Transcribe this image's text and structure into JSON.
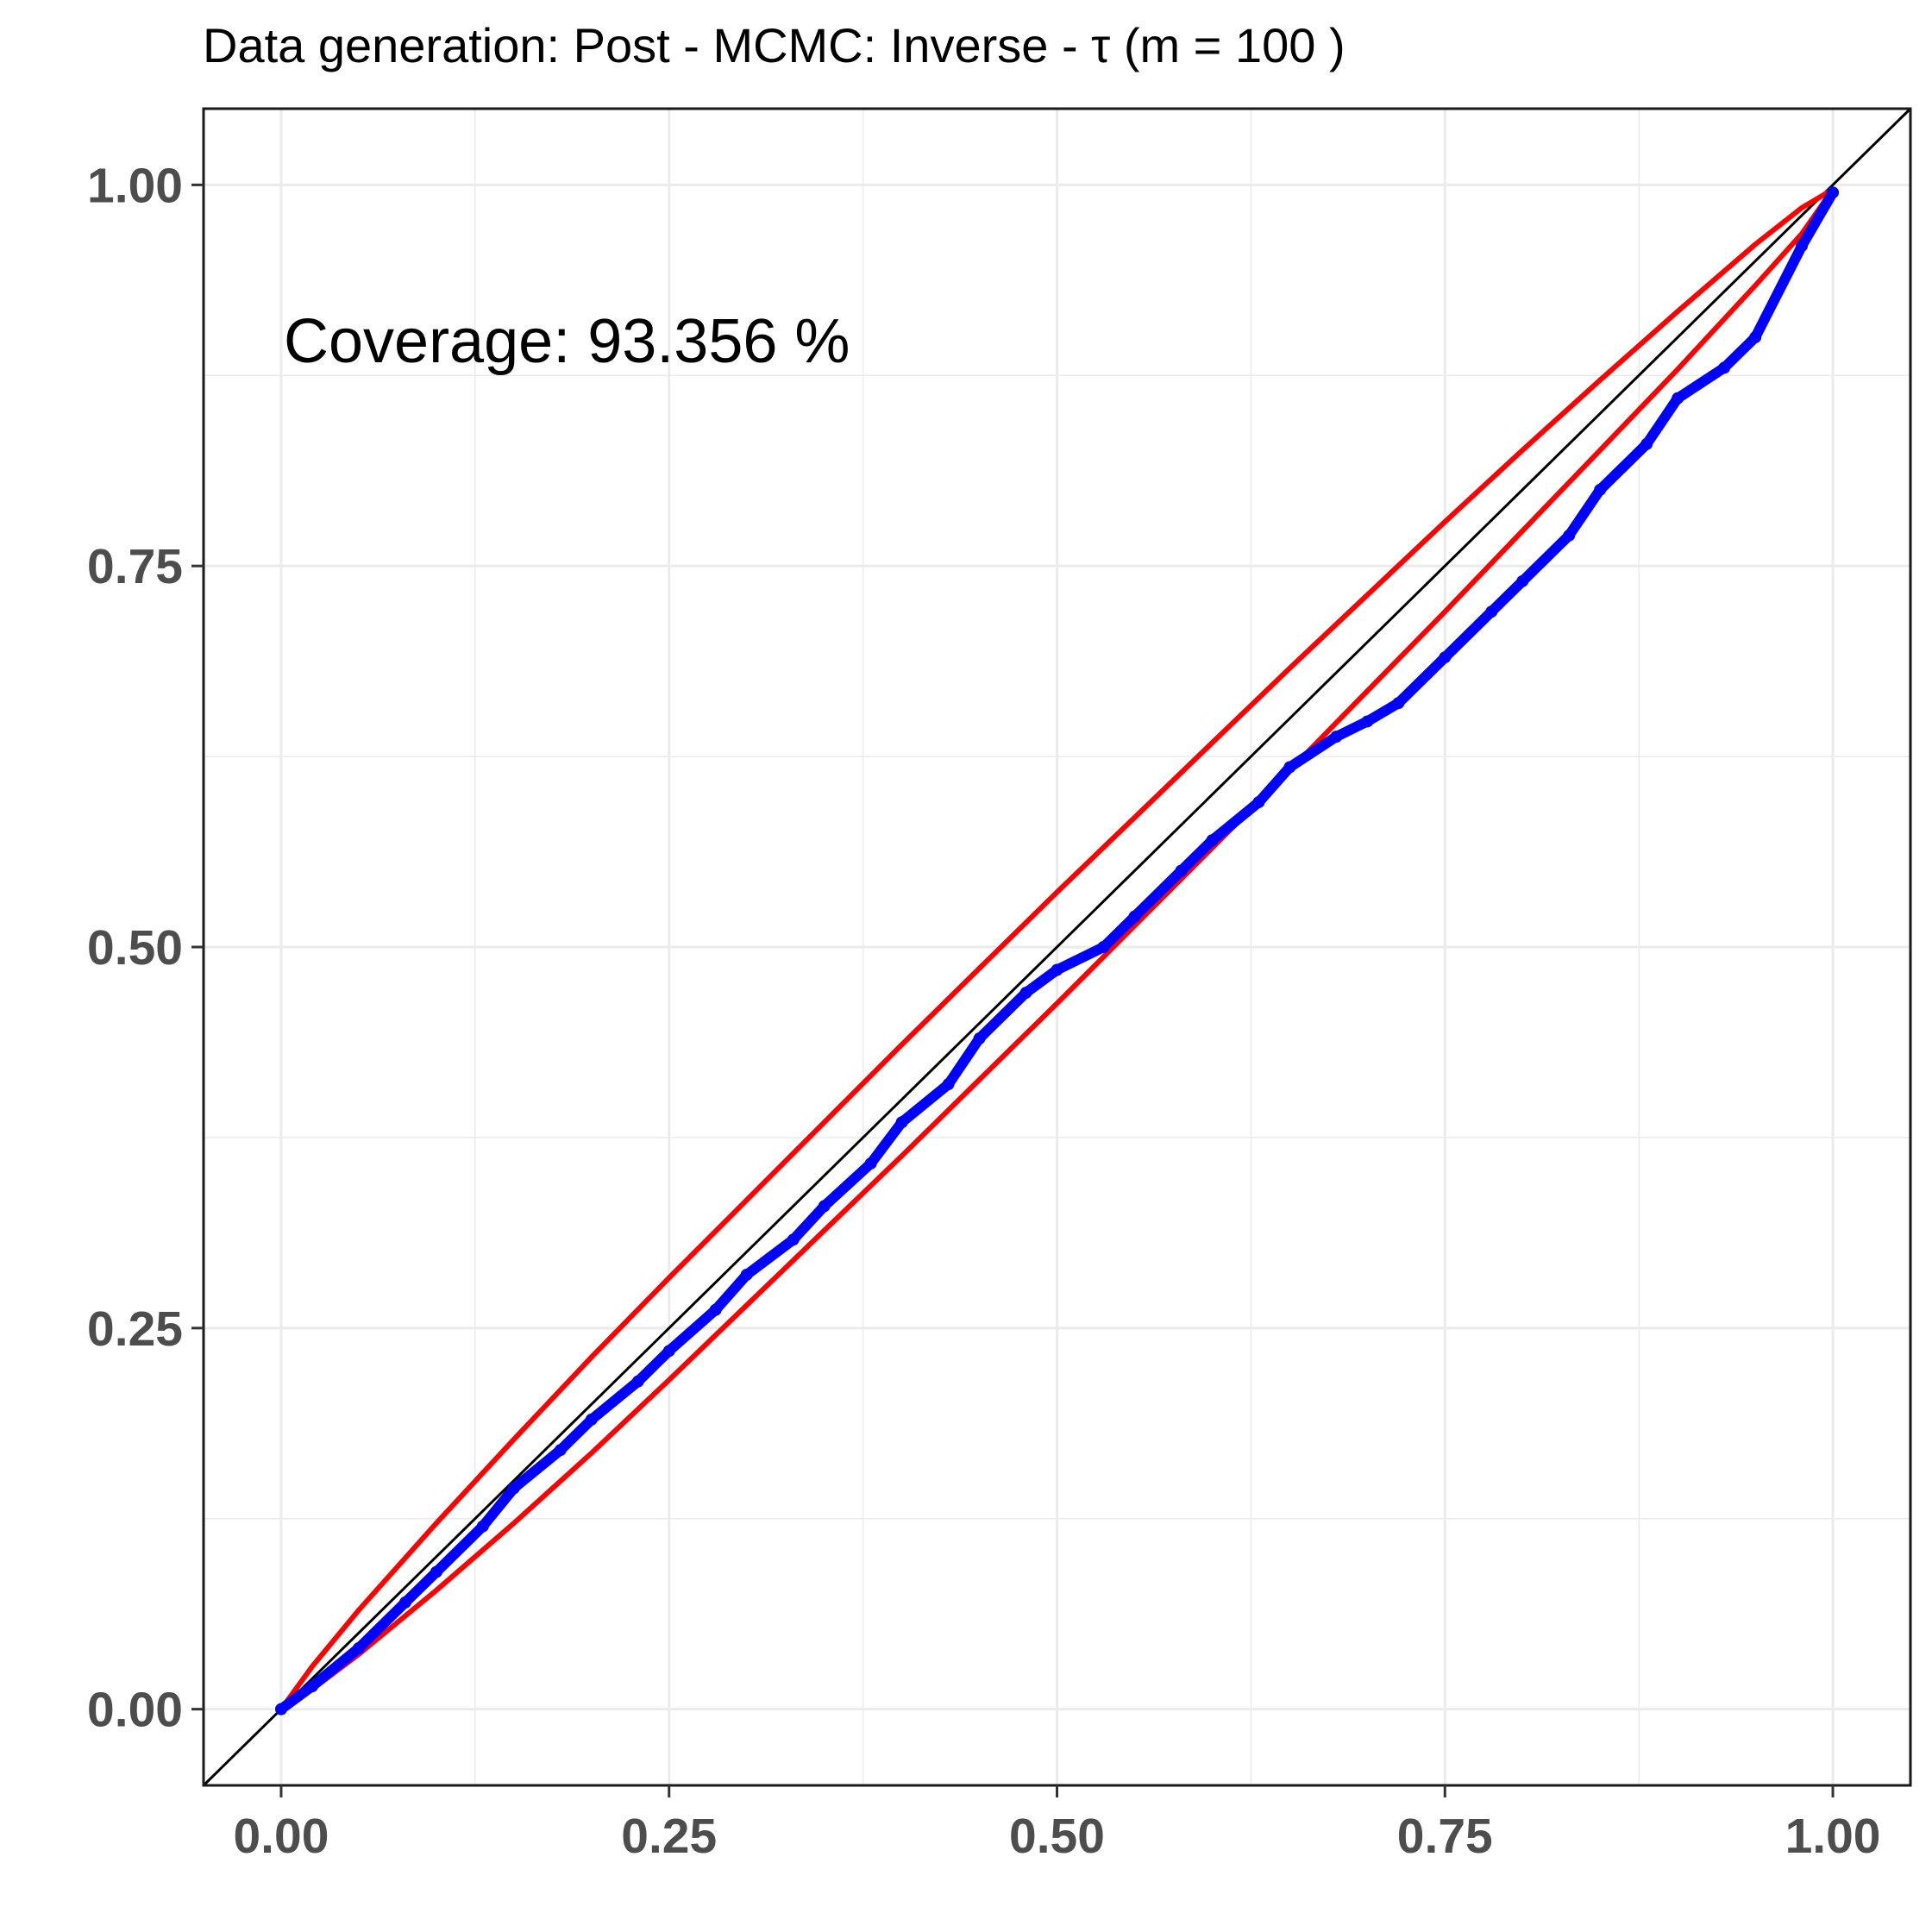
{
  "chart_data": {
    "type": "line",
    "title": "Data generation:  Post - MCMC:  Inverse  -  τ  (m =  100 )",
    "xlabel": "",
    "ylabel": "",
    "xlim": [
      -0.05,
      1.05
    ],
    "ylim": [
      -0.05,
      1.05
    ],
    "x_ticks": [
      0,
      0.25,
      0.5,
      0.75,
      1
    ],
    "y_ticks": [
      0,
      0.25,
      0.5,
      0.75,
      1
    ],
    "tick_labels": [
      "0.00",
      "0.25",
      "0.50",
      "0.75",
      "1.00"
    ],
    "grid": true,
    "annotation": "Coverage:  93.356 %",
    "colors": {
      "points": "#0000ff",
      "band": "#ff0000",
      "reference": "#000000",
      "grid": "#ebebeb"
    },
    "reference_line": {
      "slope": 1,
      "intercept": 0
    },
    "series": [
      {
        "type": "scatter",
        "x": [
          0.0,
          0.02,
          0.05,
          0.08,
          0.1,
          0.13,
          0.15,
          0.18,
          0.2,
          0.23,
          0.25,
          0.28,
          0.3,
          0.33,
          0.35,
          0.38,
          0.4,
          0.43,
          0.45,
          0.48,
          0.5,
          0.53,
          0.55,
          0.58,
          0.6,
          0.63,
          0.65,
          0.68,
          0.7,
          0.72,
          0.75,
          0.78,
          0.8,
          0.83,
          0.85,
          0.88,
          0.9,
          0.93,
          0.95,
          0.98,
          1.0
        ],
        "y": [
          0.0,
          0.015,
          0.04,
          0.07,
          0.09,
          0.12,
          0.145,
          0.17,
          0.19,
          0.215,
          0.235,
          0.262,
          0.285,
          0.308,
          0.33,
          0.358,
          0.385,
          0.41,
          0.44,
          0.47,
          0.485,
          0.5,
          0.52,
          0.55,
          0.57,
          0.595,
          0.618,
          0.638,
          0.648,
          0.66,
          0.69,
          0.72,
          0.74,
          0.77,
          0.8,
          0.83,
          0.86,
          0.88,
          0.9,
          0.96,
          0.995
        ]
      },
      {
        "type": "band_upper",
        "x": [
          0.0,
          0.02,
          0.05,
          0.1,
          0.15,
          0.2,
          0.25,
          0.3,
          0.35,
          0.4,
          0.45,
          0.5,
          0.55,
          0.6,
          0.65,
          0.7,
          0.75,
          0.8,
          0.85,
          0.9,
          0.95,
          0.98,
          1.0
        ],
        "y": [
          0.0,
          0.028,
          0.065,
          0.122,
          0.177,
          0.231,
          0.283,
          0.334,
          0.385,
          0.436,
          0.486,
          0.536,
          0.585,
          0.634,
          0.683,
          0.731,
          0.779,
          0.826,
          0.872,
          0.917,
          0.961,
          0.985,
          0.997
        ]
      },
      {
        "type": "band_lower",
        "x": [
          0.0,
          0.02,
          0.05,
          0.1,
          0.15,
          0.2,
          0.25,
          0.3,
          0.35,
          0.4,
          0.45,
          0.5,
          0.55,
          0.6,
          0.65,
          0.7,
          0.75,
          0.8,
          0.85,
          0.9,
          0.95,
          0.98,
          1.0
        ],
        "y": [
          0.0,
          0.013,
          0.036,
          0.078,
          0.122,
          0.168,
          0.216,
          0.265,
          0.314,
          0.363,
          0.413,
          0.463,
          0.514,
          0.565,
          0.616,
          0.668,
          0.72,
          0.773,
          0.826,
          0.879,
          0.934,
          0.968,
          0.997
        ]
      }
    ]
  }
}
